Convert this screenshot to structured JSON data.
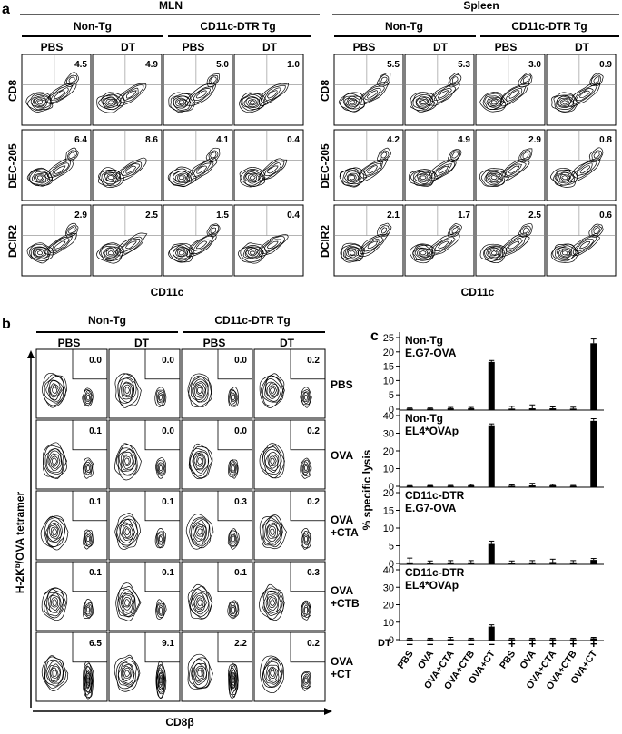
{
  "panel_a": {
    "letter": "a",
    "groups": [
      {
        "title": "MLN",
        "sub": [
          "Non-Tg",
          "CD11c-DTR Tg"
        ]
      },
      {
        "title": "Spleen",
        "sub": [
          "Non-Tg",
          "CD11c-DTR Tg"
        ]
      }
    ],
    "columns": [
      "PBS",
      "DT",
      "PBS",
      "DT"
    ],
    "rows": [
      "CD8",
      "DEC-205",
      "DCIR2"
    ],
    "xlabel": "CD11c",
    "values": {
      "MLN": [
        [
          "4.5",
          "4.9",
          "5.0",
          "1.0"
        ],
        [
          "6.4",
          "8.6",
          "4.1",
          "0.4"
        ],
        [
          "2.9",
          "2.5",
          "1.5",
          "0.4"
        ]
      ],
      "Spleen": [
        [
          "5.5",
          "5.3",
          "3.0",
          "0.9"
        ],
        [
          "4.2",
          "4.9",
          "2.9",
          "0.8"
        ],
        [
          "2.1",
          "1.7",
          "2.5",
          "0.6"
        ]
      ]
    }
  },
  "panel_b": {
    "letter": "b",
    "groups": [
      "Non-Tg",
      "CD11c-DTR Tg"
    ],
    "columns": [
      "PBS",
      "DT",
      "PBS",
      "DT"
    ],
    "rows": [
      [
        "PBS"
      ],
      [
        "OVA"
      ],
      [
        "OVA",
        "+CTA"
      ],
      [
        "OVA",
        "+CTB"
      ],
      [
        "OVA",
        "+CT"
      ]
    ],
    "ylabel": "H-2K",
    "ylabel_sup": "b",
    "ylabel_rest": "/OVA tetramer",
    "xlabel": "CD8β",
    "values": [
      [
        "0.0",
        "0.0",
        "0.0",
        "0.2"
      ],
      [
        "0.1",
        "0.0",
        "0.0",
        "0.2"
      ],
      [
        "0.1",
        "0.1",
        "0.3",
        "0.2"
      ],
      [
        "0.1",
        "0.1",
        "0.1",
        "0.3"
      ],
      [
        "6.5",
        "9.1",
        "2.2",
        "0.2"
      ]
    ]
  },
  "panel_c": {
    "letter": "c",
    "ylabel": "% specific lysis",
    "dt_label": "DT",
    "dt_marks": [
      "–",
      "–",
      "–",
      "–",
      "–",
      "+",
      "+",
      "+",
      "+",
      "+"
    ],
    "categories": [
      "PBS",
      "OVA",
      "OVA+CTA",
      "OVA+CTB",
      "OVA+CT",
      "PBS",
      "OVA",
      "OVA+CTA",
      "OVA+CTB",
      "OVA+CT"
    ]
  },
  "chart_data": [
    {
      "type": "bar",
      "title": "Non-Tg E.G7-OVA",
      "title_lines": [
        "Non-Tg",
        "E.G7-OVA"
      ],
      "categories": [
        "PBS",
        "OVA",
        "OVA+CTA",
        "OVA+CTB",
        "OVA+CT",
        "PBS",
        "OVA",
        "OVA+CTA",
        "OVA+CTB",
        "OVA+CT"
      ],
      "values": [
        0.2,
        0.2,
        0.3,
        0.3,
        16.5,
        0.2,
        0.3,
        0.3,
        0.2,
        23
      ],
      "errors": [
        0.2,
        0.2,
        0.3,
        0.3,
        0.5,
        0.8,
        1.2,
        0.5,
        0.5,
        1.5
      ],
      "ylim": [
        0,
        25
      ],
      "yticks": [
        "0",
        "5",
        "10",
        "15",
        "20",
        "25"
      ],
      "ylabel": "% specific lysis"
    },
    {
      "type": "bar",
      "title": "Non-Tg EL4*OVAp",
      "title_lines": [
        "Non-Tg",
        "EL4*OVAp"
      ],
      "categories": [
        "PBS",
        "OVA",
        "OVA+CTA",
        "OVA+CTB",
        "OVA+CT",
        "PBS",
        "OVA",
        "OVA+CTA",
        "OVA+CTB",
        "OVA+CT"
      ],
      "values": [
        0.2,
        0.3,
        0.2,
        0.5,
        34.5,
        0.3,
        0.5,
        0.5,
        0.2,
        37
      ],
      "errors": [
        0.2,
        0.2,
        0.3,
        0.5,
        0.8,
        0.5,
        1.2,
        0.5,
        0.3,
        1.2
      ],
      "ylim": [
        0,
        40
      ],
      "yticks": [
        "0",
        "10",
        "20",
        "30",
        "40"
      ],
      "ylabel": "% specific lysis"
    },
    {
      "type": "bar",
      "title": "CD11c-DTR E.G7-OVA",
      "title_lines": [
        "CD11c-DTR",
        "E.G7-OVA"
      ],
      "categories": [
        "PBS",
        "OVA",
        "OVA+CTA",
        "OVA+CTB",
        "OVA+CT",
        "PBS",
        "OVA",
        "OVA+CTA",
        "OVA+CTB",
        "OVA+CT"
      ],
      "values": [
        0.3,
        0.2,
        0.3,
        0.3,
        5.5,
        0.2,
        0.3,
        0.4,
        0.3,
        1
      ],
      "errors": [
        1.2,
        0.5,
        0.5,
        0.5,
        0.8,
        0.5,
        0.5,
        0.8,
        0.5,
        0.4
      ],
      "ylim": [
        0,
        20
      ],
      "yticks": [
        "0",
        "5",
        "10",
        "15",
        "20"
      ],
      "ylabel": "% specific lysis"
    },
    {
      "type": "bar",
      "title": "CD11c-DTR EL4*OVAp",
      "title_lines": [
        "CD11c-DTR",
        "EL4*OVAp"
      ],
      "categories": [
        "PBS",
        "OVA",
        "OVA+CTA",
        "OVA+CTB",
        "OVA+CT",
        "PBS",
        "OVA",
        "OVA+CTA",
        "OVA+CTB",
        "OVA+CT"
      ],
      "values": [
        0.3,
        0.3,
        0.3,
        0.3,
        7.5,
        0.3,
        0.3,
        0.3,
        0.3,
        0.8
      ],
      "errors": [
        0.5,
        0.5,
        1,
        0.5,
        1,
        0.5,
        0.5,
        0.5,
        0.5,
        0.5
      ],
      "ylim": [
        0,
        40
      ],
      "yticks": [
        "0",
        "10",
        "20",
        "30",
        "40"
      ],
      "ylabel": "% specific lysis"
    }
  ]
}
